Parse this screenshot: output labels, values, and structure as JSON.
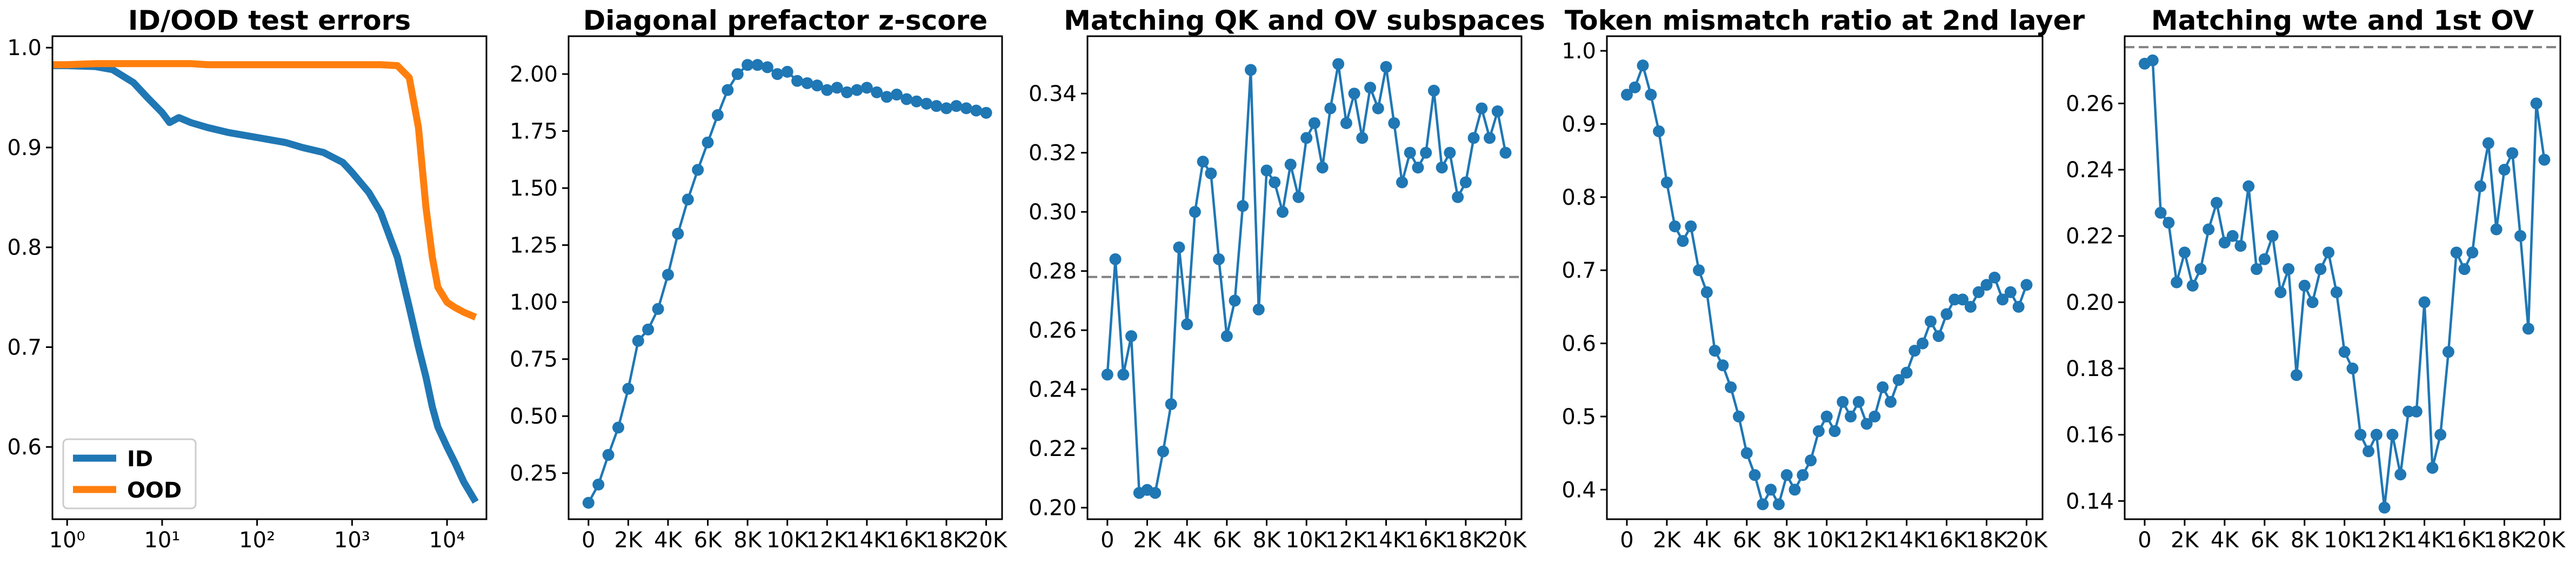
{
  "chart_data": [
    {
      "type": "line",
      "title": "ID/OOD test errors",
      "xscale": "log",
      "xlim": [
        0.7,
        26000
      ],
      "ylim": [
        0.5276,
        1.0115
      ],
      "xticks": [
        {
          "value": 1,
          "label": "10⁰"
        },
        {
          "value": 10,
          "label": "10¹"
        },
        {
          "value": 100,
          "label": "10²"
        },
        {
          "value": 1000,
          "label": "10³"
        },
        {
          "value": 10000,
          "label": "10⁴"
        }
      ],
      "yticks": [
        0.6,
        0.7,
        0.8,
        0.9,
        {
          "value": 1,
          "label": "1.0"
        }
      ],
      "legend": "lower left",
      "markers": false,
      "x": [
        0.7,
        1,
        2,
        3,
        5,
        7,
        10,
        12,
        15,
        20,
        30,
        50,
        100,
        200,
        300,
        500,
        800,
        1000,
        1500,
        2000,
        3000,
        4000,
        5000,
        6000,
        7000,
        8000,
        10000,
        12000,
        15000,
        20000
      ],
      "series": [
        {
          "name": "ID",
          "color": "#1f77b4",
          "values": [
            0.982,
            0.982,
            0.981,
            0.978,
            0.965,
            0.95,
            0.935,
            0.925,
            0.93,
            0.925,
            0.92,
            0.915,
            0.91,
            0.905,
            0.9,
            0.895,
            0.885,
            0.875,
            0.855,
            0.835,
            0.79,
            0.74,
            0.7,
            0.67,
            0.64,
            0.62,
            0.6,
            0.585,
            0.565,
            0.545
          ]
        },
        {
          "name": "OOD",
          "color": "#ff7f0e",
          "values": [
            0.983,
            0.983,
            0.984,
            0.984,
            0.984,
            0.984,
            0.984,
            0.984,
            0.984,
            0.984,
            0.983,
            0.983,
            0.983,
            0.983,
            0.983,
            0.983,
            0.983,
            0.983,
            0.983,
            0.983,
            0.982,
            0.97,
            0.92,
            0.84,
            0.79,
            0.76,
            0.745,
            0.74,
            0.735,
            0.73
          ]
        }
      ]
    },
    {
      "type": "line",
      "title": "Diagonal prefactor z-score",
      "xlim": [
        -1000,
        20800
      ],
      "ylim": [
        0.048,
        2.166
      ],
      "markers": true,
      "xticks": [
        0,
        {
          "value": 2000,
          "label": "2K"
        },
        {
          "value": 4000,
          "label": "4K"
        },
        {
          "value": 6000,
          "label": "6K"
        },
        {
          "value": 8000,
          "label": "8K"
        },
        {
          "value": 10000,
          "label": "10K"
        },
        {
          "value": 12000,
          "label": "12K"
        },
        {
          "value": 14000,
          "label": "14K"
        },
        {
          "value": 16000,
          "label": "16K"
        },
        {
          "value": 18000,
          "label": "18K"
        },
        {
          "value": 20000,
          "label": "20K"
        }
      ],
      "yticks": [
        0.25,
        {
          "value": 0.5,
          "label": "0.50"
        },
        0.75,
        {
          "value": 1,
          "label": "1.00"
        },
        1.25,
        {
          "value": 1.5,
          "label": "1.50"
        },
        1.75,
        {
          "value": 2,
          "label": "2.00"
        }
      ],
      "x": [
        0,
        500,
        1000,
        1500,
        2000,
        2500,
        3000,
        3500,
        4000,
        4500,
        5000,
        5500,
        6000,
        6500,
        7000,
        7500,
        8000,
        8500,
        9000,
        9500,
        10000,
        10500,
        11000,
        11500,
        12000,
        12500,
        13000,
        13500,
        14000,
        14500,
        15000,
        15500,
        16000,
        16500,
        17000,
        17500,
        18000,
        18500,
        19000,
        19500,
        20000
      ],
      "series": [
        {
          "color": "#1f77b4",
          "values": [
            0.12,
            0.2,
            0.33,
            0.45,
            0.62,
            0.83,
            0.88,
            0.97,
            1.12,
            1.3,
            1.45,
            1.58,
            1.7,
            1.82,
            1.93,
            2.0,
            2.04,
            2.04,
            2.03,
            2.0,
            2.01,
            1.97,
            1.96,
            1.95,
            1.93,
            1.94,
            1.92,
            1.93,
            1.94,
            1.92,
            1.9,
            1.91,
            1.89,
            1.88,
            1.87,
            1.86,
            1.85,
            1.86,
            1.85,
            1.84,
            1.83
          ]
        }
      ]
    },
    {
      "type": "line",
      "title": "Matching QK and OV subspaces",
      "xlim": [
        -1000,
        20800
      ],
      "ylim": [
        0.1961,
        0.3594
      ],
      "markers": true,
      "reference_line": 0.278,
      "xticks": [
        0,
        {
          "value": 2000,
          "label": "2K"
        },
        {
          "value": 4000,
          "label": "4K"
        },
        {
          "value": 6000,
          "label": "6K"
        },
        {
          "value": 8000,
          "label": "8K"
        },
        {
          "value": 10000,
          "label": "10K"
        },
        {
          "value": 12000,
          "label": "12K"
        },
        {
          "value": 14000,
          "label": "14K"
        },
        {
          "value": 16000,
          "label": "16K"
        },
        {
          "value": 18000,
          "label": "18K"
        },
        {
          "value": 20000,
          "label": "20K"
        }
      ],
      "yticks": [
        {
          "value": 0.2,
          "label": "0.20"
        },
        0.22,
        0.24,
        0.26,
        0.28,
        {
          "value": 0.3,
          "label": "0.30"
        },
        0.32,
        0.34
      ],
      "x": [
        0,
        400,
        800,
        1200,
        1600,
        2000,
        2400,
        2800,
        3200,
        3600,
        4000,
        4400,
        4800,
        5200,
        5600,
        6000,
        6400,
        6800,
        7200,
        7600,
        8000,
        8400,
        8800,
        9200,
        9600,
        10000,
        10400,
        10800,
        11200,
        11600,
        12000,
        12400,
        12800,
        13200,
        13600,
        14000,
        14400,
        14800,
        15200,
        15600,
        16000,
        16400,
        16800,
        17200,
        17600,
        18000,
        18400,
        18800,
        19200,
        19600,
        20000
      ],
      "series": [
        {
          "color": "#1f77b4",
          "values": [
            0.245,
            0.284,
            0.245,
            0.258,
            0.205,
            0.206,
            0.205,
            0.219,
            0.235,
            0.288,
            0.262,
            0.3,
            0.317,
            0.313,
            0.284,
            0.258,
            0.27,
            0.302,
            0.348,
            0.267,
            0.314,
            0.31,
            0.3,
            0.316,
            0.305,
            0.325,
            0.33,
            0.315,
            0.335,
            0.35,
            0.33,
            0.34,
            0.325,
            0.342,
            0.335,
            0.349,
            0.33,
            0.31,
            0.32,
            0.315,
            0.32,
            0.341,
            0.315,
            0.32,
            0.305,
            0.31,
            0.325,
            0.335,
            0.325,
            0.334,
            0.32
          ]
        }
      ]
    },
    {
      "type": "line",
      "title": "Token mismatch ratio at 2nd layer",
      "xlim": [
        -1000,
        20800
      ],
      "ylim": [
        0.3596,
        1.02
      ],
      "markers": true,
      "xticks": [
        0,
        {
          "value": 2000,
          "label": "2K"
        },
        {
          "value": 4000,
          "label": "4K"
        },
        {
          "value": 6000,
          "label": "6K"
        },
        {
          "value": 8000,
          "label": "8K"
        },
        {
          "value": 10000,
          "label": "10K"
        },
        {
          "value": 12000,
          "label": "12K"
        },
        {
          "value": 14000,
          "label": "14K"
        },
        {
          "value": 16000,
          "label": "16K"
        },
        {
          "value": 18000,
          "label": "18K"
        },
        {
          "value": 20000,
          "label": "20K"
        }
      ],
      "yticks": [
        0.4,
        0.5,
        0.6,
        0.7,
        0.8,
        0.9,
        {
          "value": 1,
          "label": "1.0"
        }
      ],
      "x": [
        0,
        400,
        800,
        1200,
        1600,
        2000,
        2400,
        2800,
        3200,
        3600,
        4000,
        4400,
        4800,
        5200,
        5600,
        6000,
        6400,
        6800,
        7200,
        7600,
        8000,
        8400,
        8800,
        9200,
        9600,
        10000,
        10400,
        10800,
        11200,
        11600,
        12000,
        12400,
        12800,
        13200,
        13600,
        14000,
        14400,
        14800,
        15200,
        15600,
        16000,
        16400,
        16800,
        17200,
        17600,
        18000,
        18400,
        18800,
        19200,
        19600,
        20000
      ],
      "series": [
        {
          "color": "#1f77b4",
          "values": [
            0.94,
            0.95,
            0.98,
            0.94,
            0.89,
            0.82,
            0.76,
            0.74,
            0.76,
            0.7,
            0.67,
            0.59,
            0.57,
            0.54,
            0.5,
            0.45,
            0.42,
            0.38,
            0.4,
            0.38,
            0.42,
            0.4,
            0.42,
            0.44,
            0.48,
            0.5,
            0.48,
            0.52,
            0.5,
            0.52,
            0.49,
            0.5,
            0.54,
            0.52,
            0.55,
            0.56,
            0.59,
            0.6,
            0.63,
            0.61,
            0.64,
            0.66,
            0.66,
            0.65,
            0.67,
            0.68,
            0.69,
            0.66,
            0.67,
            0.65,
            0.68
          ]
        }
      ]
    },
    {
      "type": "line",
      "title": "Matching wte and 1st OV",
      "xlim": [
        -1000,
        20800
      ],
      "ylim": [
        0.1345,
        0.2803
      ],
      "markers": true,
      "reference_line": 0.277,
      "xticks": [
        0,
        {
          "value": 2000,
          "label": "2K"
        },
        {
          "value": 4000,
          "label": "4K"
        },
        {
          "value": 6000,
          "label": "6K"
        },
        {
          "value": 8000,
          "label": "8K"
        },
        {
          "value": 10000,
          "label": "10K"
        },
        {
          "value": 12000,
          "label": "12K"
        },
        {
          "value": 14000,
          "label": "14K"
        },
        {
          "value": 16000,
          "label": "16K"
        },
        {
          "value": 18000,
          "label": "18K"
        },
        {
          "value": 20000,
          "label": "20K"
        }
      ],
      "yticks": [
        0.14,
        0.16,
        0.18,
        {
          "value": 0.2,
          "label": "0.20"
        },
        0.22,
        0.24,
        0.26
      ],
      "x": [
        0,
        400,
        800,
        1200,
        1600,
        2000,
        2400,
        2800,
        3200,
        3600,
        4000,
        4400,
        4800,
        5200,
        5600,
        6000,
        6400,
        6800,
        7200,
        7600,
        8000,
        8400,
        8800,
        9200,
        9600,
        10000,
        10400,
        10800,
        11200,
        11600,
        12000,
        12400,
        12800,
        13200,
        13600,
        14000,
        14400,
        14800,
        15200,
        15600,
        16000,
        16400,
        16800,
        17200,
        17600,
        18000,
        18400,
        18800,
        19200,
        19600,
        20000
      ],
      "series": [
        {
          "color": "#1f77b4",
          "values": [
            0.272,
            0.273,
            0.227,
            0.224,
            0.206,
            0.215,
            0.205,
            0.21,
            0.222,
            0.23,
            0.218,
            0.22,
            0.217,
            0.235,
            0.21,
            0.213,
            0.22,
            0.203,
            0.21,
            0.178,
            0.205,
            0.2,
            0.21,
            0.215,
            0.203,
            0.185,
            0.18,
            0.16,
            0.155,
            0.16,
            0.138,
            0.16,
            0.148,
            0.167,
            0.167,
            0.2,
            0.15,
            0.16,
            0.185,
            0.215,
            0.21,
            0.215,
            0.235,
            0.248,
            0.222,
            0.24,
            0.245,
            0.22,
            0.192,
            0.26,
            0.243
          ]
        }
      ]
    }
  ]
}
